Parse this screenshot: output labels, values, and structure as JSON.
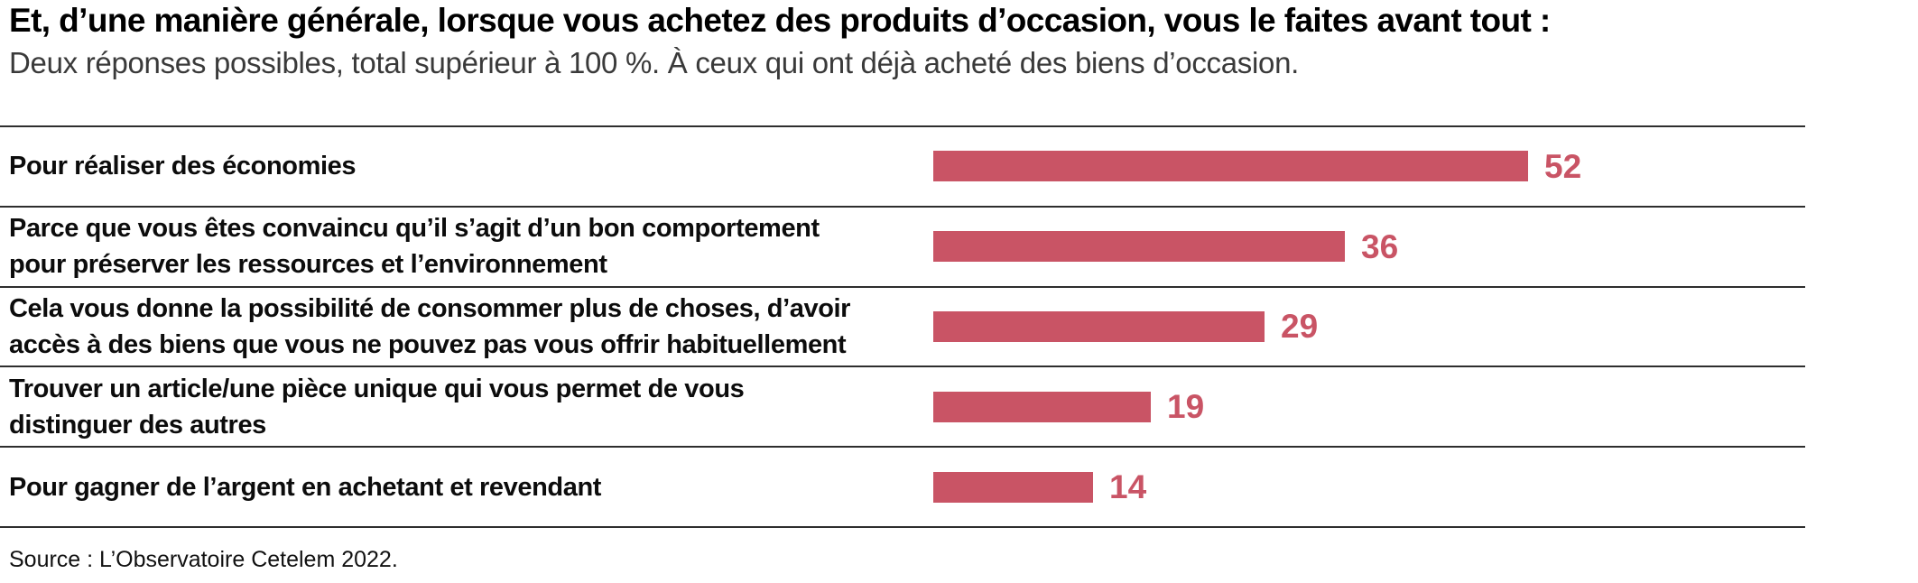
{
  "header": {
    "title": "Et, d’une manière générale, lorsque vous achetez des produits d’occasion, vous le faites avant tout :",
    "subtitle": "Deux réponses possibles, total supérieur à 100 %. À ceux qui ont déjà acheté des biens d’occasion."
  },
  "footer": {
    "source": "Source : L’Observatoire Cetelem 2022."
  },
  "colors": {
    "bar": "#c95465",
    "separator_line": "#2e2e2e",
    "title_text": "#000000",
    "subtitle_text": "#3a3a3a"
  },
  "chart_data": {
    "type": "bar",
    "orientation": "horizontal",
    "title": "Et, d’une manière générale, lorsque vous achetez des produits d’occasion, vous le faites avant tout :",
    "subtitle": "Deux réponses possibles, total supérieur à 100 %. À ceux qui ont déjà acheté des biens d’occasion.",
    "categories": [
      "Pour réaliser des économies",
      "Parce que vous êtes convaincu qu’il s’agit d’un bon comportement pour préserver les ressources et l’environnement",
      "Cela vous donne la possibilité de consommer plus de choses, d’avoir accès à des biens que vous ne pouvez pas vous offrir habituellement",
      "Trouver un article/une pièce unique qui vous permet de vous distinguer des autres",
      "Pour gagner de l’argent en achetant et revendant"
    ],
    "label_lines": [
      [
        "Pour réaliser des économies"
      ],
      [
        "Parce que vous êtes convaincu qu’il s’agit d’un bon comportement",
        "pour préserver les ressources et l’environnement"
      ],
      [
        "Cela vous donne la possibilité de consommer plus de choses, d’avoir",
        "accès à des biens que vous ne pouvez pas vous offrir habituellement"
      ],
      [
        "Trouver un article/une pièce unique qui vous permet de vous",
        "distinguer des autres"
      ],
      [
        "Pour gagner de l’argent en achetant et revendant"
      ]
    ],
    "values": [
      52,
      36,
      29,
      19,
      14
    ],
    "xlabel": "",
    "ylabel": "",
    "xlim": [
      0,
      75
    ],
    "grid": "row-separator-lines-only",
    "legend": "none",
    "value_labels_shown": true,
    "source": "Source : L’Observatoire Cetelem 2022."
  }
}
